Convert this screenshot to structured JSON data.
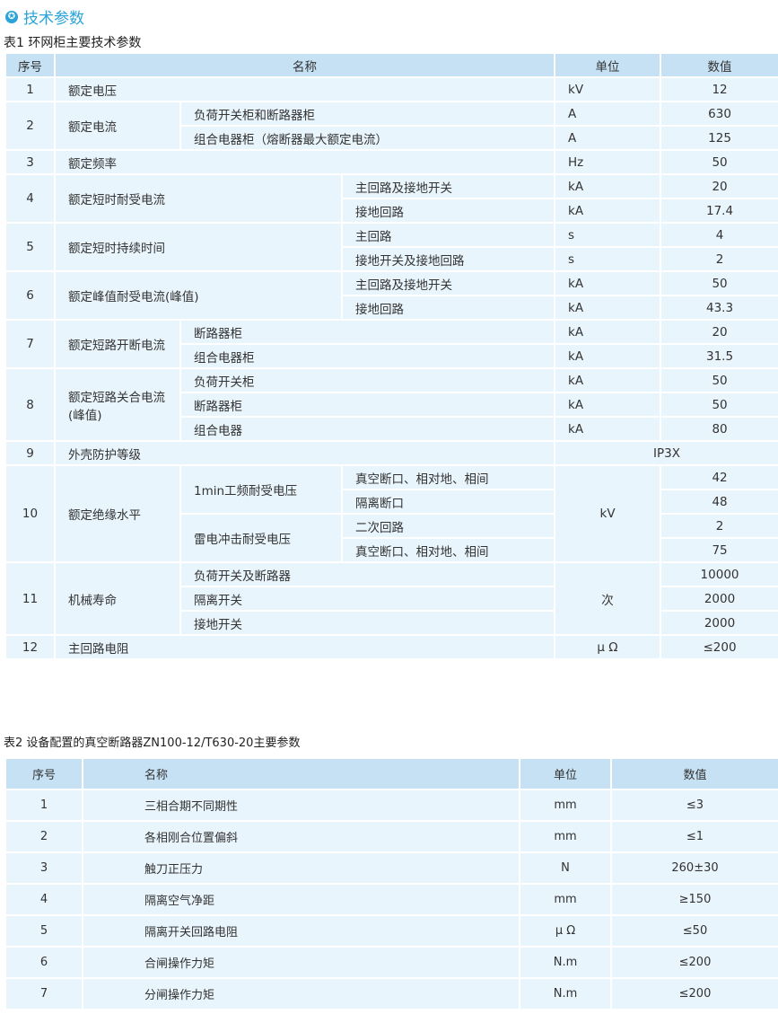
{
  "title": "技术参数",
  "title_icon": "star-circle-icon",
  "colors": {
    "accent": "#2aa3d8",
    "header_bg": "#c6e1f4",
    "cell_bg": "#e9f5fc"
  },
  "table1": {
    "caption": "表1 环网柜主要技术参数",
    "headers": [
      "序号",
      "名称",
      "单位",
      "数值"
    ],
    "r1": {
      "no": "1",
      "name": "额定电压",
      "unit": "kV",
      "value": "12"
    },
    "r2": {
      "no": "2",
      "name": "额定电流",
      "items": [
        {
          "sub": "负荷开关柜和断路器柜",
          "unit": "A",
          "value": "630"
        },
        {
          "sub": "组合电器柜（熔断器最大额定电流）",
          "unit": "A",
          "value": "125"
        }
      ]
    },
    "r3": {
      "no": "3",
      "name": "额定频率",
      "unit": "Hz",
      "value": "50"
    },
    "r4": {
      "no": "4",
      "name": "额定短时耐受电流",
      "items": [
        {
          "sub": "主回路及接地开关",
          "unit": "kA",
          "value": "20"
        },
        {
          "sub": "接地回路",
          "unit": "kA",
          "value": "17.4"
        }
      ]
    },
    "r5": {
      "no": "5",
      "name": "额定短时持续时间",
      "items": [
        {
          "sub": "主回路",
          "unit": "s",
          "value": "4"
        },
        {
          "sub": "接地开关及接地回路",
          "unit": "s",
          "value": "2"
        }
      ]
    },
    "r6": {
      "no": "6",
      "name": "额定峰值耐受电流(峰值)",
      "items": [
        {
          "sub": "主回路及接地开关",
          "unit": "kA",
          "value": "50"
        },
        {
          "sub": "接地回路",
          "unit": "kA",
          "value": "43.3"
        }
      ]
    },
    "r7": {
      "no": "7",
      "name": "额定短路开断电流",
      "items": [
        {
          "sub": "断路器柜",
          "unit": "kA",
          "value": "20"
        },
        {
          "sub": "组合电器柜",
          "unit": "kA",
          "value": "31.5"
        }
      ]
    },
    "r8": {
      "no": "8",
      "name": "额定短路关合电流(峰值)",
      "items": [
        {
          "sub": "负荷开关柜",
          "unit": "kA",
          "value": "50"
        },
        {
          "sub": "断路器柜",
          "unit": "kA",
          "value": "50"
        },
        {
          "sub": "组合电器",
          "unit": "kA",
          "value": "80"
        }
      ]
    },
    "r9": {
      "no": "9",
      "name": "外壳防护等级",
      "value": "IP3X"
    },
    "r10": {
      "no": "10",
      "name": "额定绝缘水平",
      "unit": "kV",
      "groups": [
        {
          "label": "1min工频耐受电压",
          "items": [
            {
              "sub": "真空断口、相对地、相间",
              "value": "42"
            },
            {
              "sub": "隔离断口",
              "value": "48"
            }
          ]
        },
        {
          "label": "雷电冲击耐受电压",
          "items": [
            {
              "sub": "二次回路",
              "value": "2"
            },
            {
              "sub": "真空断口、相对地、相间",
              "value": "75"
            }
          ]
        }
      ]
    },
    "r11": {
      "no": "11",
      "name": "机械寿命",
      "unit": "次",
      "items": [
        {
          "sub": "负荷开关及断路器",
          "value": "10000"
        },
        {
          "sub": "隔离开关",
          "value": "2000"
        },
        {
          "sub": "接地开关",
          "value": "2000"
        }
      ]
    },
    "r12": {
      "no": "12",
      "name": "主回路电阻",
      "unit": "μ Ω",
      "value": "≤200"
    }
  },
  "table2": {
    "caption": "表2 设备配置的真空断路器ZN100-12/T630-20主要参数",
    "headers": [
      "序号",
      "名称",
      "单位",
      "数值"
    ],
    "rows": [
      {
        "no": "1",
        "name": "三相合期不同期性",
        "unit": "mm",
        "value": "≤3"
      },
      {
        "no": "2",
        "name": "各相刚合位置偏斜",
        "unit": "mm",
        "value": "≤1"
      },
      {
        "no": "3",
        "name": "触刀正压力",
        "unit": "N",
        "value": "260±30"
      },
      {
        "no": "4",
        "name": "隔离空气净距",
        "unit": "mm",
        "value": "≥150"
      },
      {
        "no": "5",
        "name": "隔离开关回路电阻",
        "unit": "μ Ω",
        "value": "≤50"
      },
      {
        "no": "6",
        "name": "合闸操作力矩",
        "unit": "N.m",
        "value": "≤200"
      },
      {
        "no": "7",
        "name": "分闸操作力矩",
        "unit": "N.m",
        "value": "≤200"
      }
    ]
  }
}
